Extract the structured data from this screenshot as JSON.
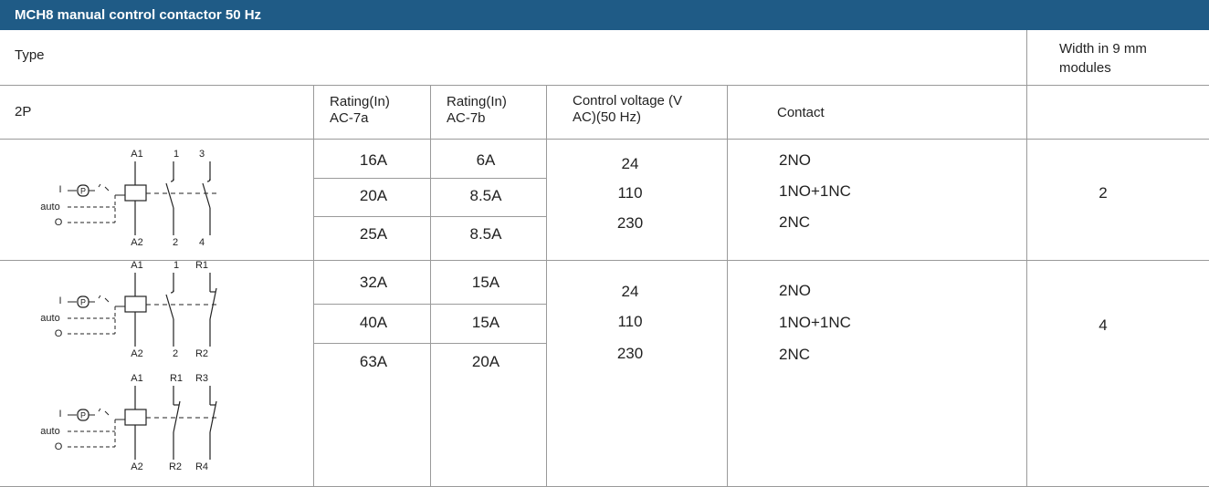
{
  "header": {
    "title": "MCH8 manual control contactor 50 Hz"
  },
  "table": {
    "type_label": "Type",
    "width_label": "Width in 9 mm modules",
    "columns": [
      "2P",
      "Rating(In) AC-7a",
      "Rating(In) AC-7b",
      "Control voltage (V AC)(50 Hz)",
      "Contact"
    ],
    "groups": [
      {
        "ratings": [
          [
            "16A",
            "6A"
          ],
          [
            "20A",
            "8.5A"
          ],
          [
            "25A",
            "8.5A"
          ]
        ],
        "voltages": [
          "24",
          "110",
          "230"
        ],
        "contacts": [
          "2NO",
          "1NO+1NC",
          "2NC"
        ],
        "width": "2"
      },
      {
        "ratings": [
          [
            "32A",
            "15A"
          ],
          [
            "40A",
            "15A"
          ],
          [
            "63A",
            "20A"
          ]
        ],
        "voltages": [
          "24",
          "110",
          "230"
        ],
        "contacts": [
          "2NO",
          "1NO+1NC",
          "2NC"
        ],
        "width": "4"
      }
    ]
  },
  "diagrams": [
    {
      "top": [
        "A1",
        "1",
        "3"
      ],
      "bottom": [
        "A2",
        "2",
        "4"
      ],
      "left": [
        "I",
        "auto",
        "O"
      ],
      "button": "P"
    },
    {
      "top": [
        "A1",
        "1",
        "R1"
      ],
      "bottom": [
        "A2",
        "2",
        "R2"
      ],
      "left": [
        "I",
        "auto",
        "O"
      ],
      "button": "P"
    },
    {
      "top": [
        "A1",
        "R1",
        "R3"
      ],
      "bottom": [
        "A2",
        "R2",
        "R4"
      ],
      "left": [
        "I",
        "auto",
        "O"
      ],
      "button": "P"
    }
  ]
}
